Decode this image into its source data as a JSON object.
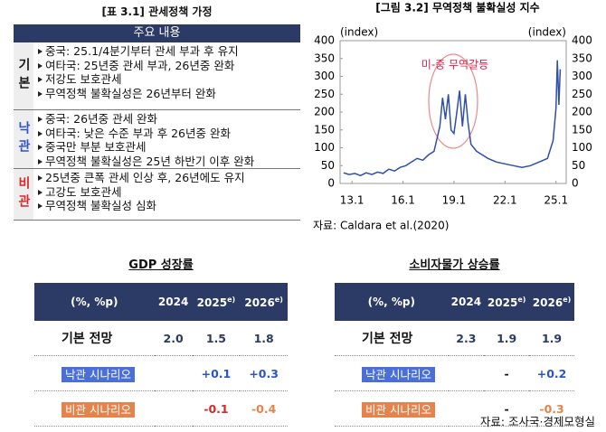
{
  "table_left": {
    "title": "[표 3.1] 관세정책 가정",
    "header": "주요 내용",
    "rows": [
      {
        "label": "기본",
        "items": [
          "중국: 25.1/4분기부터 관세 부과 후 유지",
          "여타국: 25년중 관세 부과, 26년중 완화",
          "저강도 보호관세",
          "무역정책 불확실성은 26년부터 완화"
        ]
      },
      {
        "label": "낙관",
        "items": [
          "중국: 26년중 관세 완화",
          "여타국: 낮은 수준 부과 후 26년중 완화",
          "중국만 부분 보호관세",
          "무역정책 불확실성은 25년 하반기 이후 완화"
        ]
      },
      {
        "label": "비관",
        "items": [
          "25년중 큰폭 관세 인상 후, 26년에도 유지",
          "고강도 보호관세",
          "무역정책 불확실성 심화"
        ]
      }
    ]
  },
  "chart_data": {
    "type": "line",
    "title": "[그림 3.2] 무역정책 불확실성 지수",
    "y_label": "(index)",
    "y2_label": "(index)",
    "annotation": "미-중 무역갈등",
    "source": "자료: Caldara et al.(2020)",
    "x": [
      2012.5,
      2012.83,
      2013.17,
      2013.5,
      2013.83,
      2014.17,
      2014.5,
      2014.83,
      2015.17,
      2015.5,
      2015.83,
      2016.17,
      2016.5,
      2016.83,
      2017.17,
      2017.5,
      2017.83,
      2018.17,
      2018.33,
      2018.5,
      2018.67,
      2018.83,
      2019.0,
      2019.17,
      2019.33,
      2019.5,
      2019.67,
      2019.83,
      2020.0,
      2020.33,
      2020.67,
      2021.0,
      2021.5,
      2022.0,
      2022.5,
      2023.0,
      2023.5,
      2024.0,
      2024.5,
      2024.83,
      2025.0,
      2025.08,
      2025.17,
      2025.25
    ],
    "values": [
      30,
      25,
      28,
      22,
      30,
      25,
      32,
      28,
      40,
      35,
      45,
      50,
      60,
      70,
      65,
      80,
      90,
      160,
      240,
      180,
      250,
      150,
      140,
      200,
      260,
      160,
      250,
      170,
      110,
      90,
      80,
      70,
      60,
      55,
      50,
      45,
      50,
      60,
      70,
      120,
      210,
      345,
      220,
      320
    ],
    "color": "#2f4fa8",
    "xlim": [
      2012.3,
      2025.6
    ],
    "xticks": [
      {
        "value": 2013,
        "label": "13.1"
      },
      {
        "value": 2016,
        "label": "16.1"
      },
      {
        "value": 2019,
        "label": "19.1"
      },
      {
        "value": 2022,
        "label": "22.1"
      },
      {
        "value": 2025,
        "label": "25.1"
      }
    ],
    "ylim": [
      0,
      400
    ],
    "yticks": [
      0,
      50,
      100,
      150,
      200,
      250,
      300,
      350,
      400
    ],
    "grid": false
  },
  "gdp_table": {
    "title": "GDP 성장률",
    "header": [
      {
        "text": "(%, %p)"
      },
      {
        "text": "2024"
      },
      {
        "text": "2025",
        "sup": "e)"
      },
      {
        "text": "2026",
        "sup": "e)"
      }
    ],
    "rows": [
      [
        "기본 전망",
        "2.0",
        "1.5",
        "1.8"
      ],
      [
        "낙관 시나리오",
        null,
        "+0.1",
        "+0.3"
      ],
      [
        "비관 시나리오",
        null,
        "-0.1",
        "-0.4"
      ]
    ]
  },
  "cpi_table": {
    "title": "소비자물가 상승률",
    "header": [
      {
        "text": "(%, %p)"
      },
      {
        "text": "2024"
      },
      {
        "text": "2025",
        "sup": "e)"
      },
      {
        "text": "2026",
        "sup": "e)"
      }
    ],
    "rows": [
      [
        "기본 전망",
        "2.3",
        "1.9",
        "1.9"
      ],
      [
        "낙관 시나리오",
        null,
        "-",
        "+0.2"
      ],
      [
        "비관 시나리오",
        null,
        "-",
        "-0.3"
      ]
    ]
  },
  "source_bottom": "자료: 조사국·경제모형실"
}
